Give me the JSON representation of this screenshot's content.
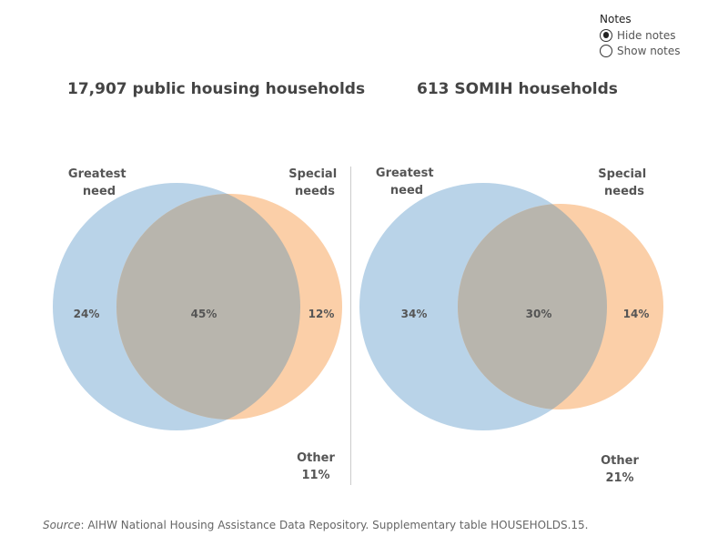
{
  "notes": {
    "title": "Notes",
    "options": [
      {
        "label": "Hide notes",
        "checked": true
      },
      {
        "label": "Show notes",
        "checked": false
      }
    ]
  },
  "panels": [
    {
      "title": "17,907 public housing households",
      "left_set_label": [
        "Greatest",
        "need"
      ],
      "right_set_label": [
        "Special",
        "needs"
      ],
      "left_only": "24%",
      "both": "45%",
      "right_only": "12%",
      "other_label": "Other",
      "other_value": "11%"
    },
    {
      "title": "613 SOMIH households",
      "left_set_label": [
        "Greatest",
        "need"
      ],
      "right_set_label": [
        "Special",
        "needs"
      ],
      "left_only": "34%",
      "both": "30%",
      "right_only": "14%",
      "other_label": "Other",
      "other_value": "21%"
    }
  ],
  "source": {
    "prefix": "Source",
    "text": ": AIHW National Housing Assistance Data Repository. Supplementary table HOUSEHOLDS.15."
  },
  "colors": {
    "greatest_need": "#b9d3e8",
    "special_needs": "#fbcfa8",
    "overlap": "#b8b5ad"
  }
}
